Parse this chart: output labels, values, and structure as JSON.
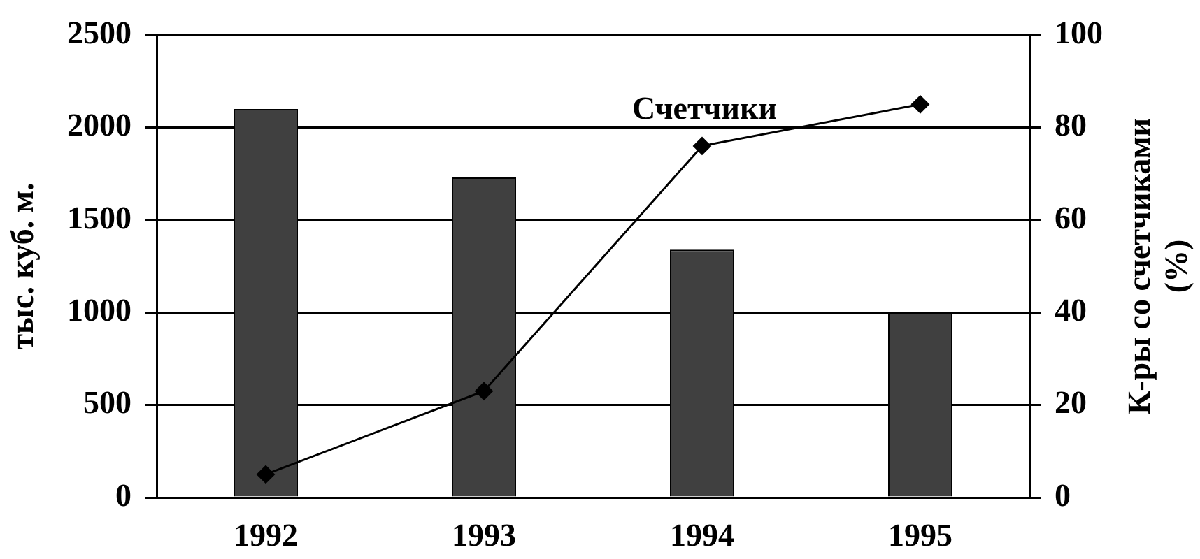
{
  "chart_data": {
    "type": "bar",
    "categories": [
      "1992",
      "1993",
      "1994",
      "1995"
    ],
    "series": [
      {
        "color": "#404040",
        "values": [
          2100,
          1730,
          1340,
          1000
        ]
      },
      {
        "type": "line",
        "name": "Счетчики",
        "color": "#000000",
        "axis": "y2",
        "marker": "diamond",
        "values": [
          5,
          23,
          76,
          85
        ]
      }
    ],
    "ylabel": "тыс. куб. м.",
    "y2label": "К-ры со счетчиками (%)",
    "ylim": [
      0,
      2500
    ],
    "yticks": [
      0,
      500,
      1000,
      1500,
      2000,
      2500
    ],
    "y2lim": [
      0,
      100
    ],
    "y2ticks": [
      0,
      20,
      40,
      60,
      80,
      100
    ],
    "grid": "y",
    "legend": false
  }
}
